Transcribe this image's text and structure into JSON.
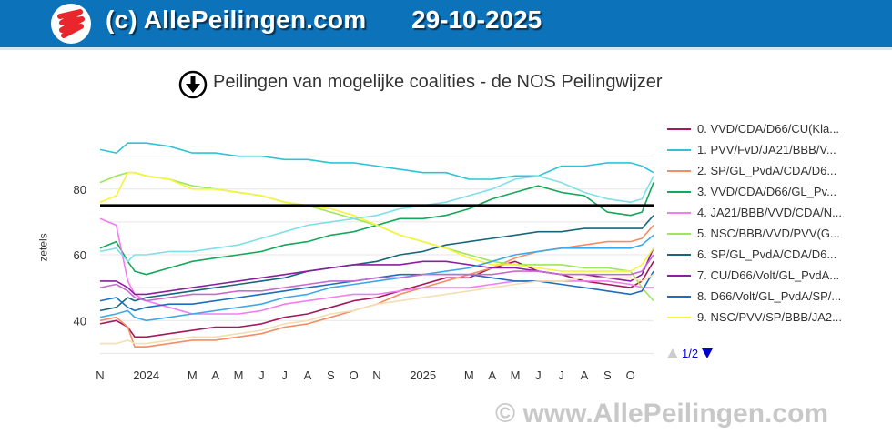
{
  "header": {
    "title": "(c) AllePeilingen.com",
    "date": "29-10-2025"
  },
  "chart_title": "Peilingen van mogelijke coalities - de NOS Peilingwijzer",
  "watermark": "© www.AllePeilingen.com",
  "pager": {
    "text": "1/2"
  },
  "colors": {
    "header_bg": "#0c72b9",
    "majority_line": "#000000",
    "logo_red": "#e8262c"
  },
  "icons": {
    "download": "download-icon",
    "logo": "logo-icon"
  },
  "chart_data": {
    "type": "line",
    "ylabel": "zetels",
    "yticks": [
      40,
      60,
      80
    ],
    "ylim": [
      29,
      96
    ],
    "xlim": [
      0,
      24
    ],
    "x_ticks": [
      {
        "x": 0,
        "label": "N"
      },
      {
        "x": 2,
        "label": "2024"
      },
      {
        "x": 4,
        "label": "M"
      },
      {
        "x": 5,
        "label": "A"
      },
      {
        "x": 6,
        "label": "M"
      },
      {
        "x": 7,
        "label": "J"
      },
      {
        "x": 8,
        "label": "J"
      },
      {
        "x": 9,
        "label": "A"
      },
      {
        "x": 10,
        "label": "S"
      },
      {
        "x": 11,
        "label": "O"
      },
      {
        "x": 12,
        "label": "N"
      },
      {
        "x": 14,
        "label": "2025"
      },
      {
        "x": 16,
        "label": "M"
      },
      {
        "x": 17,
        "label": "A"
      },
      {
        "x": 18,
        "label": "M"
      },
      {
        "x": 19,
        "label": "J"
      },
      {
        "x": 20,
        "label": "J"
      },
      {
        "x": 21,
        "label": "A"
      },
      {
        "x": 22,
        "label": "S"
      },
      {
        "x": 23,
        "label": "O"
      }
    ],
    "grid": true,
    "legend_position": "right",
    "majority_line": 75,
    "x": [
      0,
      0.7,
      1.2,
      1.5,
      2,
      3,
      4,
      5,
      6,
      7,
      8,
      9,
      10,
      11,
      12,
      13,
      14,
      15,
      16,
      17,
      18,
      19,
      20,
      21,
      22,
      23,
      23.5,
      24
    ],
    "series": [
      {
        "name": "0. VVD/CDA/D66/CU(Kla...",
        "color": "#a3195b",
        "values": [
          39,
          40,
          38,
          35,
          35,
          36,
          37,
          38,
          38,
          39,
          41,
          42,
          44,
          46,
          47,
          49,
          51,
          53,
          53,
          56,
          58,
          55,
          54,
          52,
          51,
          50,
          52,
          58
        ]
      },
      {
        "name": "1. PVV/FvD/JA21/BBB/V...",
        "color": "#2ec4d6",
        "values": [
          92,
          91,
          94,
          94,
          94,
          93,
          91,
          91,
          90,
          90,
          89,
          89,
          88,
          88,
          87,
          86,
          85,
          85,
          83,
          83,
          84,
          84,
          87,
          87,
          88,
          88,
          87,
          85
        ]
      },
      {
        "name": "2. SP/GL_PvdA/CDA/D6...",
        "color": "#f28e63",
        "values": [
          40,
          41,
          38,
          32,
          32,
          33,
          34,
          34,
          35,
          36,
          38,
          39,
          41,
          43,
          45,
          48,
          50,
          52,
          54,
          56,
          59,
          61,
          62,
          63,
          64,
          64,
          65,
          69
        ]
      },
      {
        "name": "3. VVD/CDA/D66/GL_Pv...",
        "color": "#16a85a",
        "values": [
          62,
          64,
          58,
          55,
          54,
          56,
          58,
          59,
          60,
          61,
          63,
          64,
          66,
          67,
          69,
          71,
          71,
          72,
          74,
          77,
          79,
          81,
          79,
          78,
          73,
          72,
          73,
          82
        ]
      },
      {
        "name": "4. JA21/BBB/VVD/CDA/N...",
        "color": "#f27cf2",
        "values": [
          71,
          69,
          52,
          48,
          46,
          44,
          42,
          42,
          42,
          43,
          45,
          46,
          47,
          48,
          48,
          49,
          50,
          50,
          50,
          51,
          52,
          52,
          52,
          52,
          52,
          51,
          50,
          50
        ]
      },
      {
        "name": "5. NSC/BBB/VVD/PVV(G...",
        "color": "#9ee65a",
        "values": [
          82,
          84,
          85,
          85,
          84,
          83,
          81,
          80,
          79,
          78,
          76,
          75,
          73,
          71,
          69,
          66,
          64,
          62,
          60,
          58,
          57,
          57,
          57,
          56,
          56,
          55,
          50,
          46
        ]
      },
      {
        "name": "6. SP/GL_PvdA/CDA/D6...",
        "color": "#17677a",
        "values": [
          43,
          44,
          47,
          46,
          47,
          48,
          49,
          50,
          51,
          52,
          53,
          55,
          56,
          57,
          58,
          60,
          61,
          63,
          64,
          65,
          66,
          67,
          67,
          68,
          68,
          68,
          68,
          72
        ]
      },
      {
        "name": "7. CU/D66/Volt/GL_PvdA...",
        "color": "#8a1fa0",
        "values": [
          52,
          52,
          50,
          48,
          48,
          49,
          50,
          51,
          52,
          53,
          54,
          55,
          56,
          57,
          57,
          57,
          58,
          58,
          57,
          56,
          56,
          55,
          54,
          54,
          53,
          52,
          54,
          62
        ]
      },
      {
        "name": "8. D66/Volt/GL_PvdA/SP/...",
        "color": "#1c6fbd",
        "values": [
          46,
          47,
          44,
          43,
          44,
          45,
          45,
          46,
          47,
          48,
          49,
          50,
          51,
          52,
          53,
          54,
          54,
          54,
          54,
          53,
          52,
          52,
          51,
          50,
          49,
          48,
          49,
          55
        ]
      },
      {
        "name": "9. NSC/PVV/SP/BBB/JA2...",
        "color": "#f5f53a",
        "values": [
          76,
          78,
          85,
          85,
          84,
          83,
          80,
          80,
          79,
          78,
          76,
          75,
          74,
          72,
          69,
          66,
          64,
          62,
          59,
          57,
          57,
          56,
          55,
          55,
          55,
          55,
          57,
          62
        ]
      },
      {
        "color": "#3fa9e8",
        "values": [
          41,
          42,
          43,
          41,
          40,
          41,
          42,
          43,
          44,
          45,
          47,
          48,
          50,
          51,
          52,
          53,
          54,
          55,
          56,
          58,
          60,
          61,
          62,
          62,
          62,
          62,
          63,
          66
        ]
      },
      {
        "color": "#7fe0ea",
        "values": [
          61,
          62,
          58,
          60,
          60,
          61,
          61,
          62,
          63,
          65,
          67,
          69,
          70,
          71,
          72,
          74,
          75,
          76,
          78,
          80,
          83,
          84,
          82,
          79,
          77,
          76,
          77,
          84
        ]
      },
      {
        "color": "#f5deb3",
        "values": [
          33,
          33,
          34,
          33,
          33,
          34,
          35,
          35,
          36,
          37,
          39,
          40,
          42,
          43,
          45,
          46,
          47,
          48,
          49,
          50,
          51,
          52,
          52,
          53,
          53,
          53,
          52,
          54
        ]
      },
      {
        "color": "#c86ad0",
        "values": [
          50,
          51,
          49,
          47,
          46,
          47,
          48,
          48,
          49,
          49,
          50,
          51,
          52,
          52,
          53,
          53,
          54,
          54,
          54,
          54,
          55,
          55,
          54,
          54,
          54,
          54,
          55,
          60
        ]
      }
    ]
  }
}
